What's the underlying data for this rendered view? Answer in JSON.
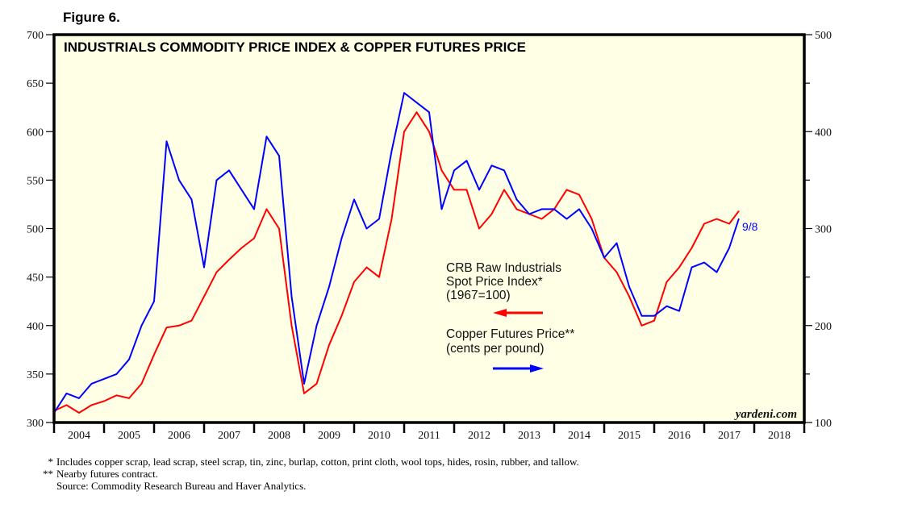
{
  "figure_label": "Figure 6.",
  "chart_data": {
    "type": "line",
    "title": "INDUSTRIALS COMMODITY PRICE INDEX & COPPER FUTURES PRICE",
    "x_range": [
      2004,
      2019
    ],
    "x_tick_labels": [
      "2004",
      "2005",
      "2006",
      "2007",
      "2008",
      "2009",
      "2010",
      "2011",
      "2012",
      "2013",
      "2014",
      "2015",
      "2016",
      "2017",
      "2018"
    ],
    "left_axis": {
      "range": [
        300,
        700
      ],
      "ticks": [
        300,
        350,
        400,
        450,
        500,
        550,
        600,
        650,
        700
      ]
    },
    "right_axis": {
      "range": [
        100,
        500
      ],
      "ticks": [
        100,
        200,
        300,
        400,
        500
      ],
      "minor_ticks": [
        150,
        250,
        350,
        450
      ]
    },
    "grid": false,
    "series": [
      {
        "name": "CRB Raw Industrials Spot Price Index* (1967=100)",
        "axis": "left",
        "color": "#ff0000",
        "x": [
          2004.0,
          2004.25,
          2004.5,
          2004.75,
          2005.0,
          2005.25,
          2005.5,
          2005.75,
          2006.0,
          2006.25,
          2006.5,
          2006.75,
          2007.0,
          2007.25,
          2007.5,
          2007.75,
          2008.0,
          2008.25,
          2008.5,
          2008.75,
          2009.0,
          2009.25,
          2009.5,
          2009.75,
          2010.0,
          2010.25,
          2010.5,
          2010.75,
          2011.0,
          2011.25,
          2011.5,
          2011.75,
          2012.0,
          2012.25,
          2012.5,
          2012.75,
          2013.0,
          2013.25,
          2013.5,
          2013.75,
          2014.0,
          2014.25,
          2014.5,
          2014.75,
          2015.0,
          2015.25,
          2015.5,
          2015.75,
          2016.0,
          2016.25,
          2016.5,
          2016.75,
          2017.0,
          2017.25,
          2017.5,
          2017.69
        ],
        "values": [
          312,
          318,
          310,
          318,
          322,
          328,
          325,
          340,
          370,
          398,
          400,
          405,
          430,
          455,
          468,
          480,
          490,
          520,
          500,
          400,
          330,
          340,
          380,
          410,
          445,
          460,
          450,
          510,
          600,
          620,
          600,
          560,
          540,
          540,
          500,
          515,
          540,
          520,
          515,
          510,
          520,
          540,
          535,
          510,
          470,
          455,
          430,
          400,
          405,
          445,
          460,
          480,
          505,
          510,
          505,
          518
        ]
      },
      {
        "name": "Copper Futures Price** (cents per pound)",
        "axis": "right",
        "color": "#0000ff",
        "x": [
          2004.0,
          2004.25,
          2004.5,
          2004.75,
          2005.0,
          2005.25,
          2005.5,
          2005.75,
          2006.0,
          2006.25,
          2006.5,
          2006.75,
          2007.0,
          2007.25,
          2007.5,
          2007.75,
          2008.0,
          2008.25,
          2008.5,
          2008.75,
          2009.0,
          2009.25,
          2009.5,
          2009.75,
          2010.0,
          2010.25,
          2010.5,
          2010.75,
          2011.0,
          2011.25,
          2011.5,
          2011.75,
          2012.0,
          2012.25,
          2012.5,
          2012.75,
          2013.0,
          2013.25,
          2013.5,
          2013.75,
          2014.0,
          2014.25,
          2014.5,
          2014.75,
          2015.0,
          2015.25,
          2015.5,
          2015.75,
          2016.0,
          2016.25,
          2016.5,
          2016.75,
          2017.0,
          2017.25,
          2017.5,
          2017.69
        ],
        "values": [
          110,
          130,
          125,
          140,
          145,
          150,
          165,
          200,
          225,
          390,
          350,
          330,
          260,
          350,
          360,
          340,
          320,
          395,
          375,
          230,
          140,
          200,
          240,
          290,
          330,
          300,
          310,
          380,
          440,
          430,
          420,
          320,
          360,
          370,
          340,
          365,
          360,
          330,
          315,
          320,
          320,
          310,
          320,
          300,
          270,
          285,
          240,
          210,
          210,
          220,
          215,
          260,
          265,
          255,
          280,
          310
        ]
      }
    ],
    "annotations": {
      "legend_crb_lines": [
        "CRB Raw Industrials",
        "Spot Price Index*",
        "(1967=100)"
      ],
      "legend_copper_lines": [
        "Copper Futures Price**",
        "(cents per pound)"
      ],
      "end_label": "9/8",
      "watermark": "yardeni.com"
    },
    "legend_placement": "center-right"
  },
  "footnotes": [
    {
      "mark": "*",
      "text": "Includes copper scrap, lead scrap, steel scrap, tin, zinc, burlap, cotton, print cloth, wool tops, hides, rosin, rubber, and tallow."
    },
    {
      "mark": "**",
      "text": "Nearby futures contract."
    },
    {
      "mark": "",
      "text": "Source: Commodity Research Bureau and Haver Analytics."
    }
  ]
}
